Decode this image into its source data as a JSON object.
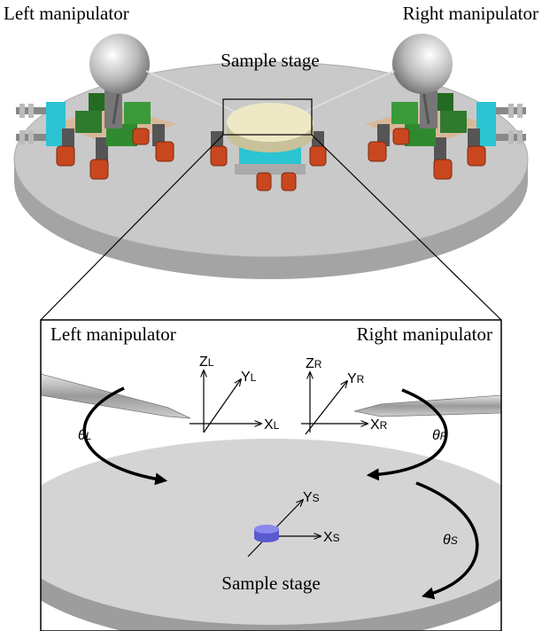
{
  "top": {
    "left_label": "Left manipulator",
    "right_label": "Right manipulator",
    "stage_label": "Sample stage"
  },
  "inset": {
    "left_label": "Left manipulator",
    "right_label": "Right manipulator",
    "stage_label": "Sample stage",
    "left_axes": {
      "z": {
        "main": "Z",
        "sub": "L"
      },
      "y": {
        "main": "Y",
        "sub": "L"
      },
      "x": {
        "main": "X",
        "sub": "L"
      }
    },
    "right_axes": {
      "z": {
        "main": "Z",
        "sub": "R"
      },
      "y": {
        "main": "Y",
        "sub": "R"
      },
      "x": {
        "main": "X",
        "sub": "R"
      }
    },
    "stage_axes": {
      "y": {
        "main": "Y",
        "sub": "S"
      },
      "x": {
        "main": "X",
        "sub": "S"
      }
    },
    "angles": {
      "left": {
        "main": "θ",
        "sub": "L"
      },
      "right": {
        "main": "θ",
        "sub": "R"
      },
      "stage": {
        "main": "θ",
        "sub": "S"
      }
    }
  }
}
